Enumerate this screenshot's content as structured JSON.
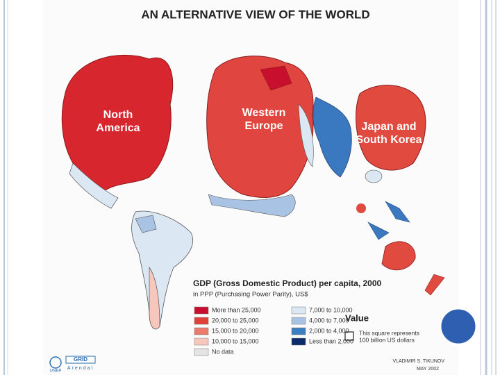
{
  "header": {
    "title": "AN ALTERNATIVE VIEW OF THE WORLD"
  },
  "map_labels": [
    {
      "lines": [
        "North",
        "America"
      ]
    },
    {
      "lines": [
        "Western",
        "Europe"
      ]
    },
    {
      "lines": [
        "Japan and",
        "South Korea"
      ]
    }
  ],
  "legend": {
    "title": "GDP (Gross Domestic Product) per capita, 2000",
    "subtitle": "in PPP (Purchasing Power Parity), US$",
    "left_items": [
      {
        "label": "More than 25,000",
        "color": "#c8102e"
      },
      {
        "label": "20,000 to 25,000",
        "color": "#e0403a"
      },
      {
        "label": "15,000 to 20,000",
        "color": "#ec7a6a"
      },
      {
        "label": "10,000 to 15,000",
        "color": "#f7c6bd"
      },
      {
        "label": "No data",
        "color": "#e4e4e4"
      }
    ],
    "right_items": [
      {
        "label": "7,000 to 10,000",
        "color": "#dce7f4"
      },
      {
        "label": "4,000 to 7,000",
        "color": "#a8c3e3"
      },
      {
        "label": "2,000 to 4,000",
        "color": "#3e7fc1"
      },
      {
        "label": "Less than 2,000",
        "color": "#0b2a6b"
      }
    ],
    "value_title": "Value",
    "value_note": [
      "This square represents",
      "100 billion US dollars"
    ]
  },
  "credits": {
    "author": "VLADIMIR S. TIKUNOV",
    "date": "MAY 2002",
    "logo1": "UNEP",
    "logo2_top": "GRID",
    "logo2_bottom": "Arendal"
  }
}
